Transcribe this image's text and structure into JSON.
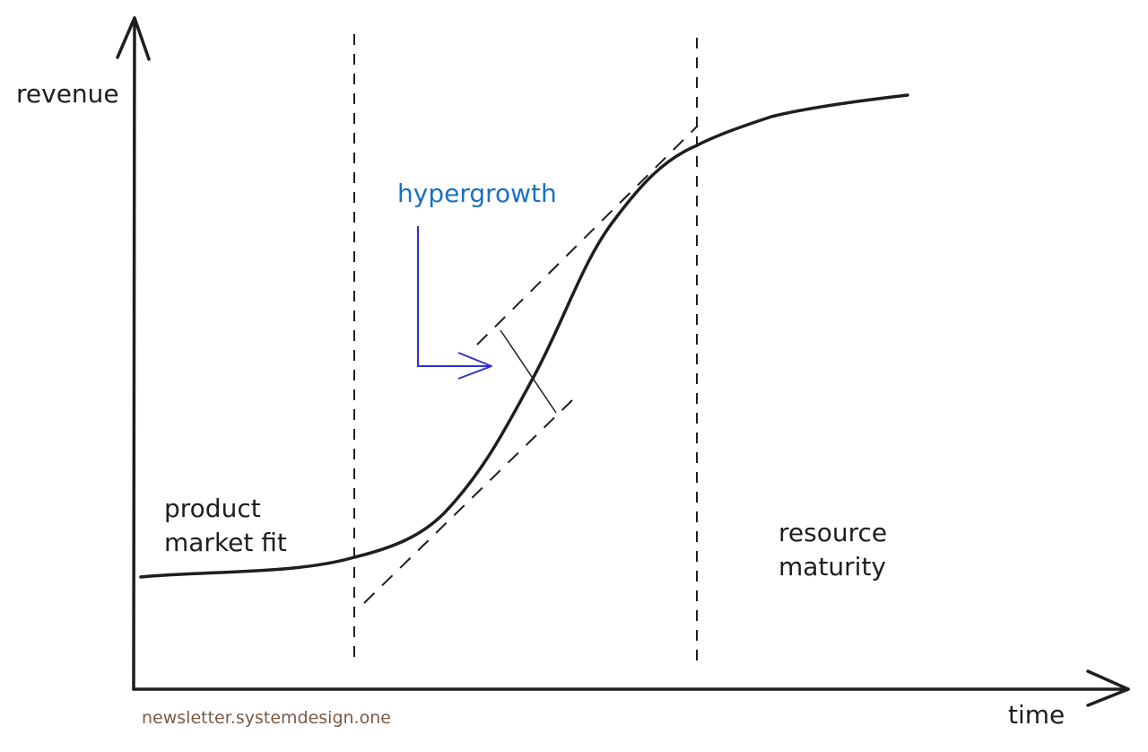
{
  "labels": {
    "y_axis": "revenue",
    "x_axis": "time",
    "phase_1_line_1": "product",
    "phase_1_line_2": "market fit",
    "phase_2": "hypergrowth",
    "phase_3_line_1": "resource",
    "phase_3_line_2": "maturity",
    "credit": "newsletter.systemdesign.one"
  },
  "colors": {
    "ink": "#1e1e1e",
    "callout_text": "#1971c2",
    "callout_arrow": "#2f2fd0",
    "credit": "#7a5a45"
  },
  "icons": {
    "callout_arrow": "arrow-right-icon"
  }
}
